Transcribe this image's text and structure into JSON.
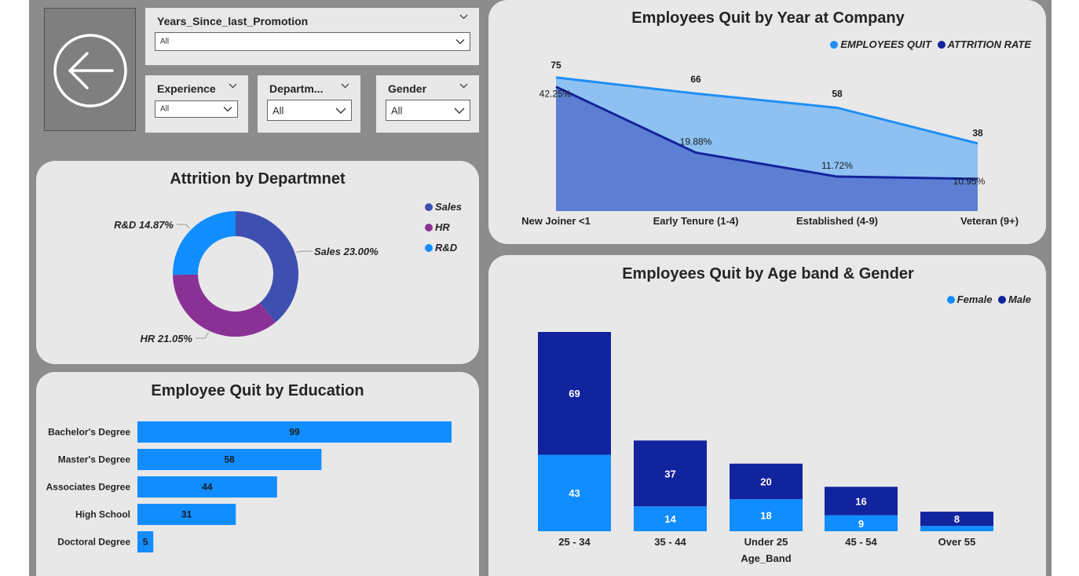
{
  "colors": {
    "light_blue": "#118dff",
    "dark_blue": "#12239e",
    "purple": "#8a3196",
    "slate": "#3f4fb0",
    "area_light": "#8ec1f2",
    "area_dark": "#5c7fd3",
    "line_light": "#1f8ff5",
    "line_dark": "#13239a"
  },
  "back_button": {
    "icon": "arrow-left-icon"
  },
  "filters": {
    "promotion": {
      "label": "Years_Since_last_Promotion",
      "value": "All"
    },
    "experience": {
      "label": "Experience",
      "value": "All"
    },
    "department": {
      "label": "Departm...",
      "value": "All"
    },
    "gender": {
      "label": "Gender",
      "value": "All"
    }
  },
  "chart_data": [
    {
      "id": "dept",
      "type": "pie",
      "title": "Attrition by Departmnet",
      "labels": [
        "Sales",
        "HR",
        "R&D"
      ],
      "values": [
        23.0,
        21.05,
        14.87
      ],
      "data_labels": [
        "Sales 23.00%",
        "HR 21.05%",
        "R&D 14.87%"
      ],
      "legend": [
        "Sales",
        "HR",
        "R&D"
      ],
      "legend_position": "right",
      "donut": true
    },
    {
      "id": "education",
      "type": "bar",
      "orientation": "horizontal",
      "title": "Employee Quit by Education",
      "categories": [
        "Bachelor's Degree",
        "Master's Degree",
        "Associates Degree",
        "High School",
        "Doctoral Degree"
      ],
      "values": [
        99,
        58,
        44,
        31,
        5
      ],
      "xlim": [
        0,
        99
      ]
    },
    {
      "id": "year",
      "type": "area",
      "title": "Employees Quit by Year at Company",
      "categories": [
        "New Joiner <1",
        "Early Tenure (1-4)",
        "Established (4-9)",
        "Veteran (9+)"
      ],
      "series": [
        {
          "name": "EMPLOYEES QUIT",
          "values": [
            75,
            66,
            58,
            38
          ],
          "labels": [
            "75",
            "66",
            "58",
            "38"
          ]
        },
        {
          "name": "ATTRITION RATE",
          "values": [
            42.25,
            19.88,
            11.72,
            10.95
          ],
          "labels": [
            "42.25%",
            "19.88%",
            "11.72%",
            "10.95%"
          ]
        }
      ],
      "legend_position": "top-right"
    },
    {
      "id": "age",
      "type": "bar",
      "stacked": true,
      "title": "Employees Quit by Age band & Gender",
      "xlabel": "Age_Band",
      "categories": [
        "25 - 34",
        "35 - 44",
        "Under 25",
        "45 - 54",
        "Over 55"
      ],
      "series": [
        {
          "name": "Female",
          "values": [
            43,
            14,
            18,
            9,
            3
          ]
        },
        {
          "name": "Male",
          "values": [
            69,
            37,
            20,
            16,
            8
          ]
        }
      ],
      "value_labels": {
        "Female": [
          "43",
          "14",
          "18",
          "9",
          ""
        ],
        "Male": [
          "69",
          "37",
          "20",
          "16",
          "8"
        ]
      },
      "ylim": [
        0,
        112
      ],
      "legend_position": "top-right"
    }
  ]
}
